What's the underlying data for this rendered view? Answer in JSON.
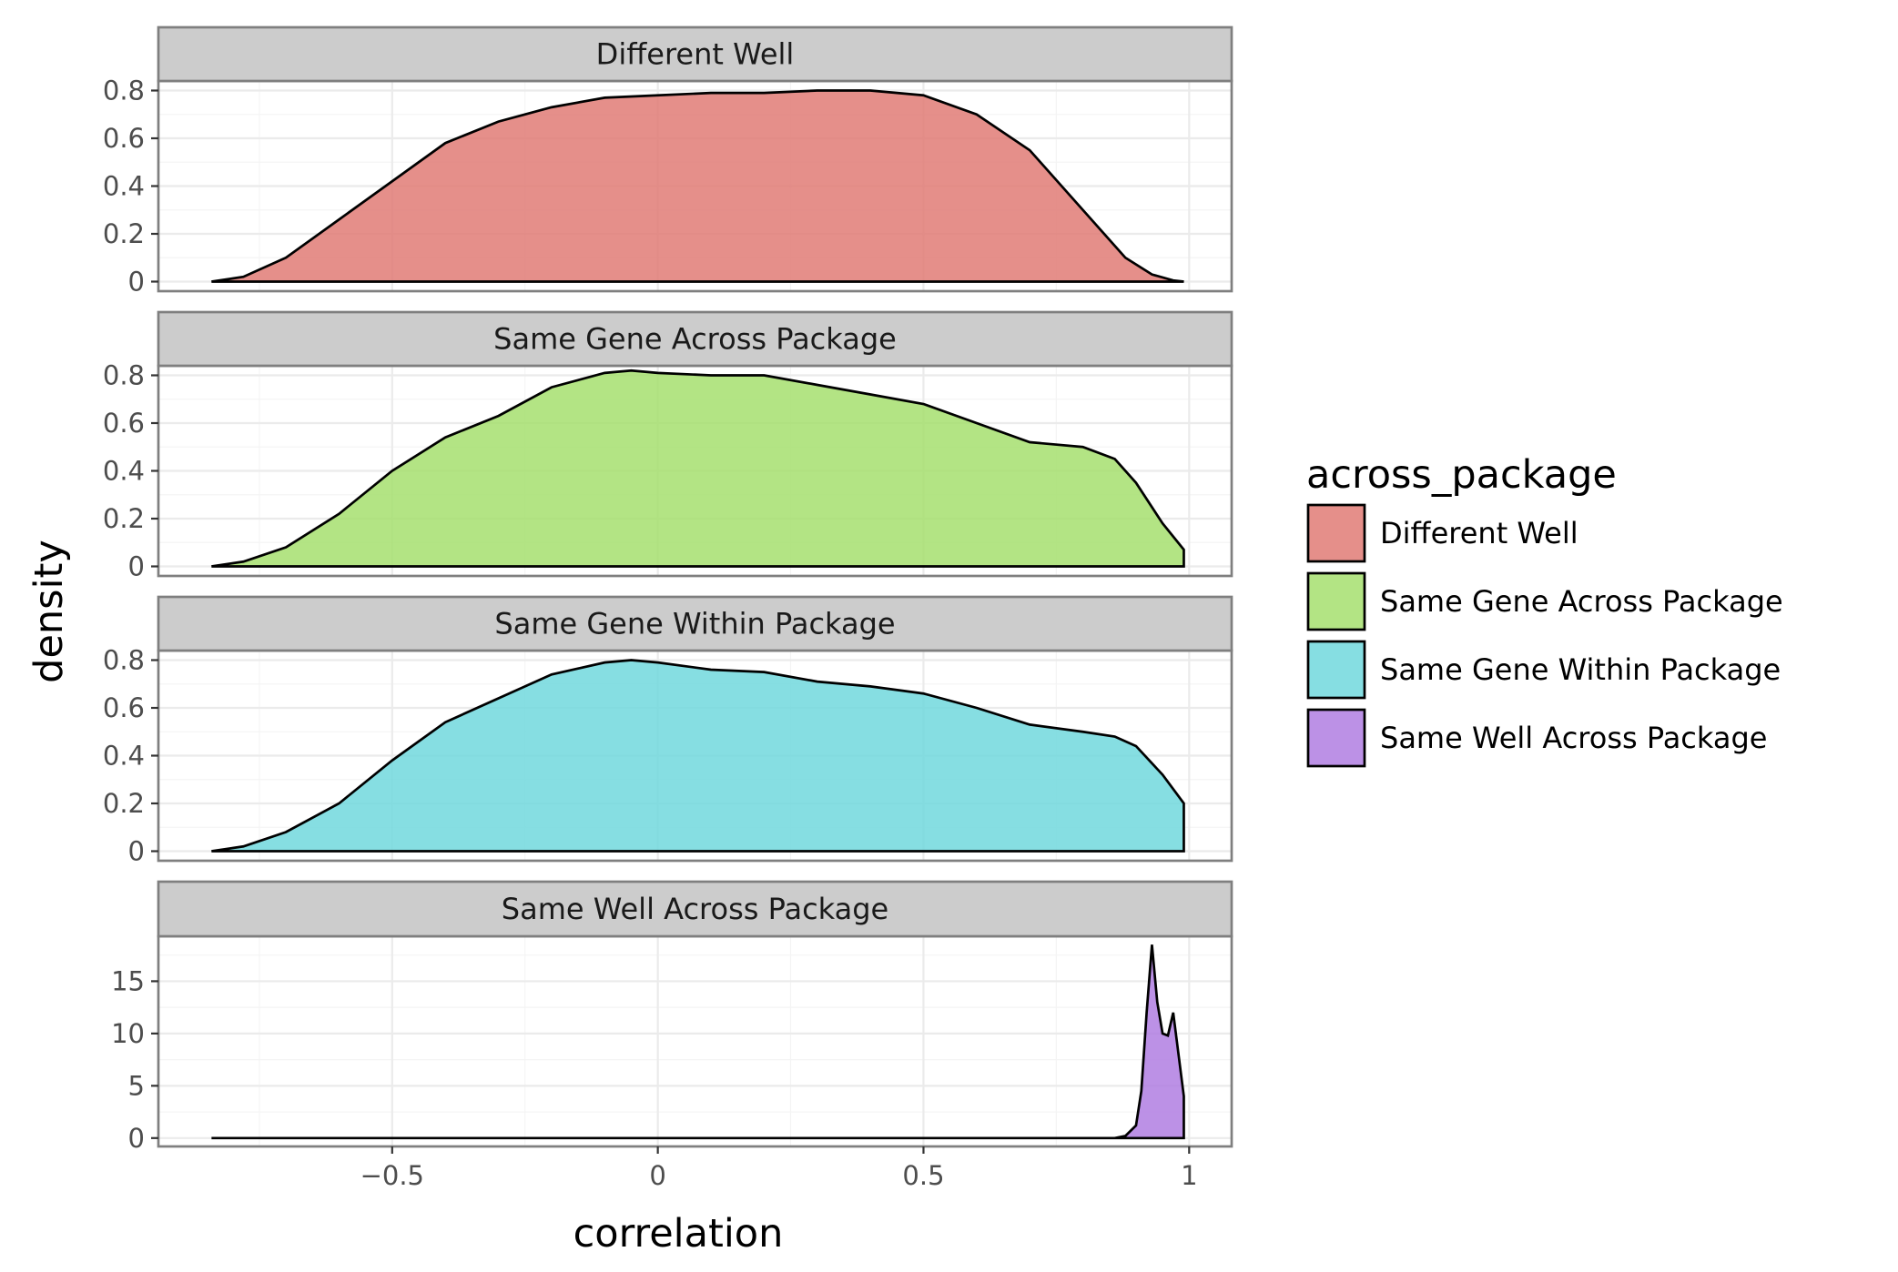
{
  "chart_data": {
    "type": "area",
    "facet_by": "across_package",
    "xlabel": "correlation",
    "ylabel": "density",
    "xlim": [
      -0.94,
      1.08
    ],
    "x_ticks": [
      -0.5,
      0,
      0.5,
      1
    ],
    "x_tick_labels": [
      "−0.5",
      "0",
      "0.5",
      "1"
    ],
    "grid": true,
    "legend": {
      "title": "across_package",
      "position": "right"
    },
    "panels": [
      {
        "name": "Different Well",
        "color": "#e07b76",
        "ylim": [
          -0.04,
          0.84
        ],
        "y_ticks": [
          0,
          0.2,
          0.4,
          0.6,
          0.8
        ],
        "y_tick_labels": [
          "0",
          "0.2",
          "0.4",
          "0.6",
          "0.8"
        ],
        "x": [
          -0.84,
          -0.78,
          -0.7,
          -0.6,
          -0.5,
          -0.4,
          -0.3,
          -0.2,
          -0.1,
          0.0,
          0.1,
          0.2,
          0.3,
          0.4,
          0.5,
          0.6,
          0.7,
          0.8,
          0.88,
          0.93,
          0.97,
          0.99
        ],
        "y": [
          0.0,
          0.02,
          0.1,
          0.26,
          0.42,
          0.58,
          0.67,
          0.73,
          0.77,
          0.78,
          0.79,
          0.79,
          0.8,
          0.8,
          0.78,
          0.7,
          0.55,
          0.3,
          0.1,
          0.03,
          0.005,
          0.0
        ]
      },
      {
        "name": "Same Gene Across Package",
        "color": "#a6df6f",
        "ylim": [
          -0.04,
          0.84
        ],
        "y_ticks": [
          0,
          0.2,
          0.4,
          0.6,
          0.8
        ],
        "y_tick_labels": [
          "0",
          "0.2",
          "0.4",
          "0.6",
          "0.8"
        ],
        "x": [
          -0.84,
          -0.78,
          -0.7,
          -0.6,
          -0.5,
          -0.4,
          -0.3,
          -0.2,
          -0.1,
          -0.05,
          0.0,
          0.1,
          0.2,
          0.3,
          0.4,
          0.5,
          0.6,
          0.7,
          0.8,
          0.86,
          0.9,
          0.95,
          0.99,
          0.99
        ],
        "y": [
          0.0,
          0.02,
          0.08,
          0.22,
          0.4,
          0.54,
          0.63,
          0.75,
          0.81,
          0.82,
          0.81,
          0.8,
          0.8,
          0.76,
          0.72,
          0.68,
          0.6,
          0.52,
          0.5,
          0.45,
          0.35,
          0.18,
          0.07,
          0.0
        ]
      },
      {
        "name": "Same Gene Within Package",
        "color": "#71d8dd",
        "ylim": [
          -0.04,
          0.84
        ],
        "y_ticks": [
          0,
          0.2,
          0.4,
          0.6,
          0.8
        ],
        "y_tick_labels": [
          "0",
          "0.2",
          "0.4",
          "0.6",
          "0.8"
        ],
        "x": [
          -0.84,
          -0.78,
          -0.7,
          -0.6,
          -0.5,
          -0.4,
          -0.3,
          -0.2,
          -0.1,
          -0.05,
          0.0,
          0.1,
          0.2,
          0.3,
          0.4,
          0.5,
          0.6,
          0.7,
          0.8,
          0.86,
          0.9,
          0.95,
          0.99,
          0.99
        ],
        "y": [
          0.0,
          0.02,
          0.08,
          0.2,
          0.38,
          0.54,
          0.64,
          0.74,
          0.79,
          0.8,
          0.79,
          0.76,
          0.75,
          0.71,
          0.69,
          0.66,
          0.6,
          0.53,
          0.5,
          0.48,
          0.44,
          0.32,
          0.2,
          0.0
        ]
      },
      {
        "name": "Same Well Across Package",
        "color": "#b07ee2",
        "ylim": [
          -0.8,
          19.3
        ],
        "y_ticks": [
          0,
          5,
          10,
          15
        ],
        "y_tick_labels": [
          "0",
          "5",
          "10",
          "15"
        ],
        "x": [
          -0.84,
          0.0,
          0.5,
          0.86,
          0.88,
          0.9,
          0.91,
          0.92,
          0.93,
          0.94,
          0.95,
          0.96,
          0.97,
          0.98,
          0.99,
          0.99
        ],
        "y": [
          0.0,
          0.0,
          0.0,
          0.0,
          0.2,
          1.2,
          4.5,
          12.0,
          18.5,
          13.0,
          10.0,
          9.8,
          12.0,
          8.0,
          4.0,
          0.0
        ]
      }
    ]
  }
}
